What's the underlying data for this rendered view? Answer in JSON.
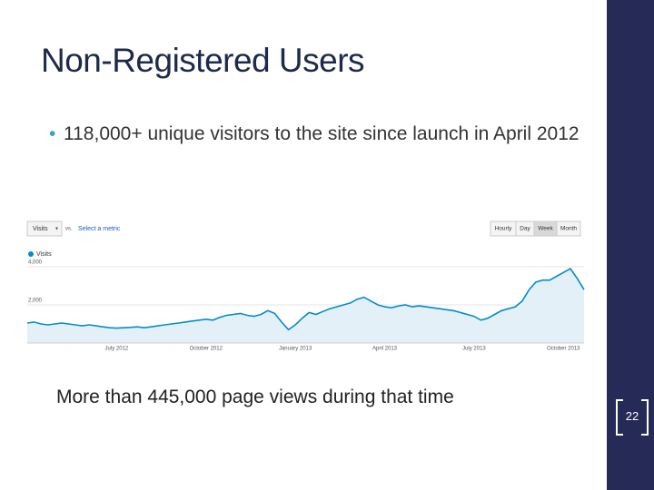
{
  "title": "Non-Registered Users",
  "bullets": [
    "118,000+ unique visitors to the site since launch in April 2012"
  ],
  "caption": "More than 445,000 page views during that time",
  "page_number": "22",
  "controls": {
    "metric": "Visits",
    "compare": "vs.",
    "select": "Select a metric",
    "granularity": [
      "Hourly",
      "Day",
      "Week",
      "Month"
    ],
    "selected": 2
  },
  "chart_data": {
    "type": "area",
    "categories": [
      null,
      null,
      null,
      null,
      null,
      null,
      null,
      null,
      null,
      null,
      null,
      null,
      null,
      "July 2012",
      null,
      null,
      null,
      null,
      null,
      null,
      null,
      null,
      null,
      null,
      null,
      null,
      "October 2012",
      null,
      null,
      null,
      null,
      null,
      null,
      null,
      null,
      null,
      null,
      null,
      null,
      "January 2013",
      null,
      null,
      null,
      null,
      null,
      null,
      null,
      null,
      null,
      null,
      null,
      null,
      "April 2013",
      null,
      null,
      null,
      null,
      null,
      null,
      null,
      null,
      null,
      null,
      null,
      null,
      "July 2013",
      null,
      null,
      null,
      null,
      null,
      null,
      null,
      null,
      null,
      null,
      null,
      null,
      "October 2013",
      null,
      null,
      null
    ],
    "series": [
      {
        "name": "Visits",
        "color": "#058dc7",
        "values": [
          1050,
          1100,
          1000,
          950,
          1000,
          1050,
          1000,
          950,
          900,
          950,
          900,
          850,
          800,
          780,
          800,
          820,
          850,
          800,
          850,
          900,
          950,
          1000,
          1050,
          1100,
          1150,
          1200,
          1250,
          1200,
          1350,
          1450,
          1500,
          1550,
          1450,
          1400,
          1500,
          1700,
          1550,
          1100,
          700,
          950,
          1300,
          1600,
          1500,
          1650,
          1800,
          1900,
          2000,
          2100,
          2300,
          2400,
          2200,
          2000,
          1900,
          1850,
          1950,
          2000,
          1900,
          1950,
          1900,
          1850,
          1800,
          1750,
          1700,
          1600,
          1500,
          1400,
          1200,
          1300,
          1500,
          1700,
          1800,
          1900,
          2200,
          2800,
          3200,
          3300,
          3300,
          3500,
          3700,
          3900,
          3400,
          2800
        ]
      }
    ],
    "ylim": [
      0,
      4000
    ],
    "yticks": [
      {
        "value": 2000,
        "label": "2,000"
      },
      {
        "value": 4000,
        "label": "4,000"
      }
    ],
    "grid": true
  }
}
